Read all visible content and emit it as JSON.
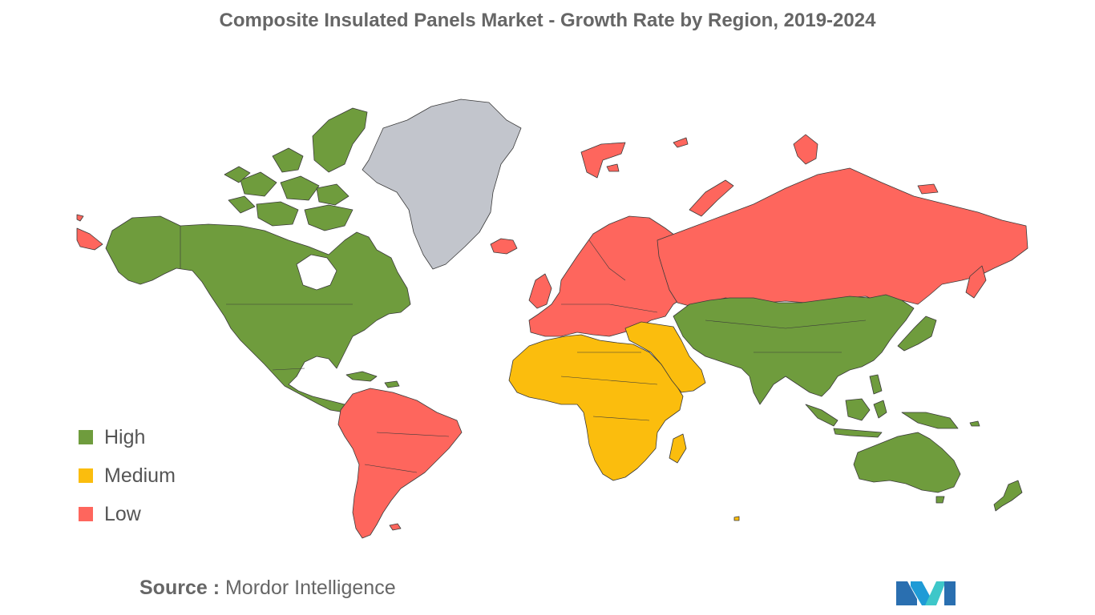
{
  "title": "Composite Insulated Panels Market - Growth Rate by Region, 2019-2024",
  "legend": {
    "items": [
      {
        "label": "High",
        "color": "#6f9c3d"
      },
      {
        "label": "Medium",
        "color": "#fbbd0d"
      },
      {
        "label": "Low",
        "color": "#fe665d"
      }
    ]
  },
  "colors": {
    "high": "#6f9c3d",
    "medium": "#fbbd0d",
    "low": "#fe665d",
    "no_data": "#c2c5cc"
  },
  "regions": [
    {
      "region": "North America",
      "growth": "High"
    },
    {
      "region": "Asia-Pacific",
      "growth": "High"
    },
    {
      "region": "Middle East and Africa",
      "growth": "Medium"
    },
    {
      "region": "South America",
      "growth": "Low"
    },
    {
      "region": "Europe",
      "growth": "Low"
    }
  ],
  "source": {
    "key": "Source :",
    "value": "Mordor Intelligence"
  },
  "logo_icon": "mordor-intelligence-logo-icon"
}
